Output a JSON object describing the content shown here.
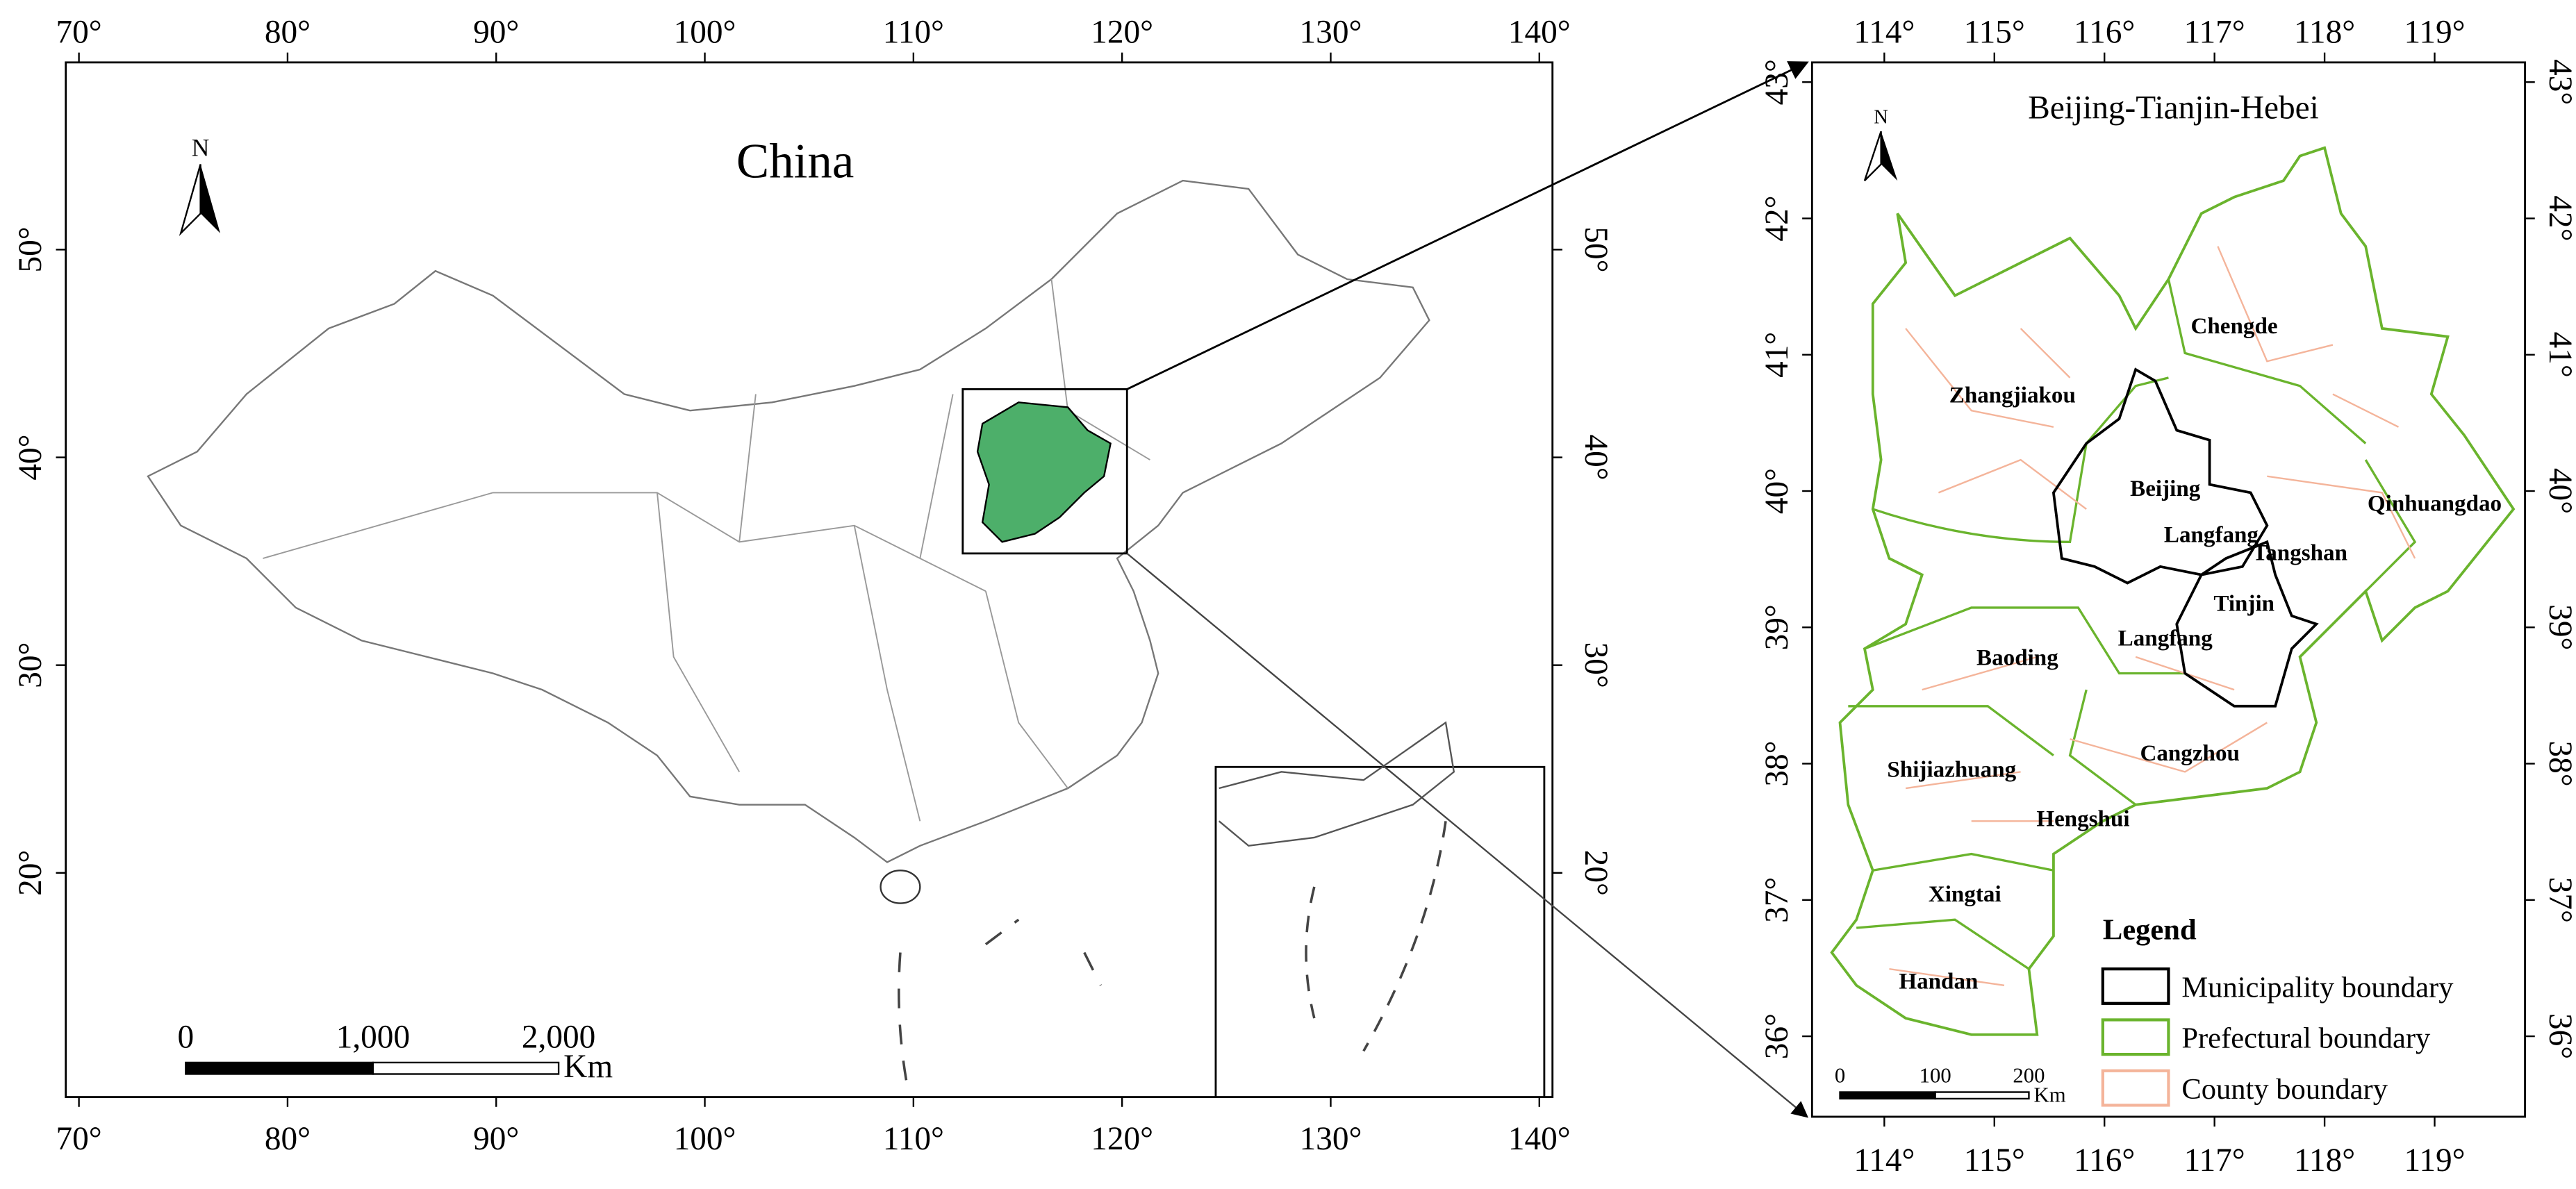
{
  "left_map": {
    "title": "China",
    "north": "N",
    "lon_ticks": [
      "70°",
      "80°",
      "90°",
      "100°",
      "110°",
      "120°",
      "130°",
      "140°"
    ],
    "lat_ticks": [
      "50°",
      "40°",
      "30°",
      "20°"
    ],
    "scale_labels": [
      "0",
      "1,000",
      "2,000"
    ],
    "scale_unit": "Km"
  },
  "right_map": {
    "title": "Beijing-Tianjin-Hebei",
    "north": "N",
    "lon_ticks": [
      "114°",
      "115°",
      "116°",
      "117°",
      "118°",
      "119°"
    ],
    "lat_ticks": [
      "43°",
      "42°",
      "41°",
      "40°",
      "39°",
      "38°",
      "37°",
      "36°"
    ],
    "regions": [
      "Chengde",
      "Zhangjiakou",
      "Beijing",
      "Langfang",
      "Tangshan",
      "Qinhuangdao",
      "Tinjin",
      "Langfang",
      "Baoding",
      "Cangzhou",
      "Shijiazhuang",
      "Hengshui",
      "Xingtai",
      "Handan"
    ],
    "scale_labels": [
      "0",
      "100",
      "200"
    ],
    "scale_unit": "Km",
    "legend": {
      "title": "Legend",
      "items": [
        "Municipality boundary",
        "Prefectural boundary",
        "County boundary"
      ]
    }
  }
}
